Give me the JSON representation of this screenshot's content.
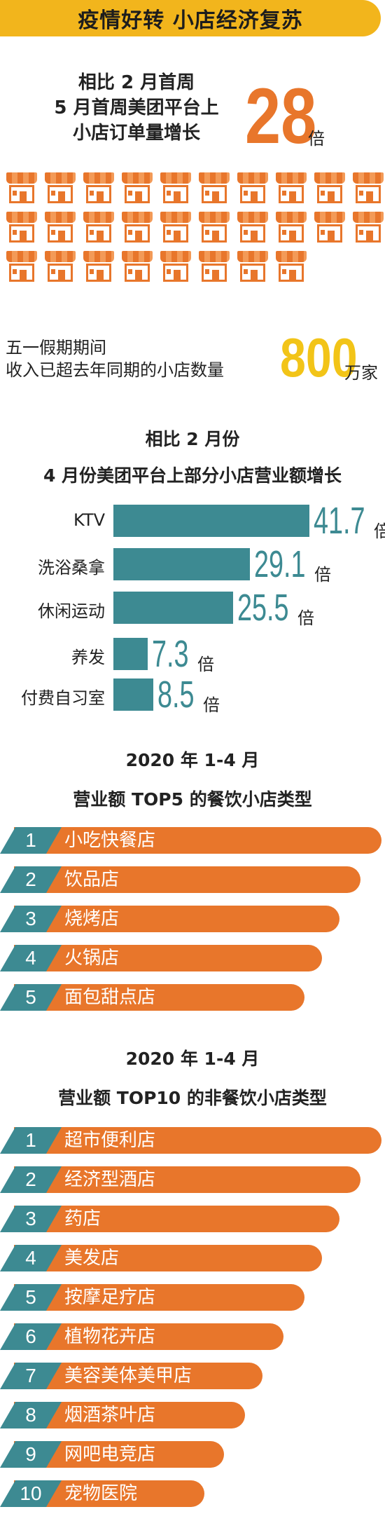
{
  "banner": "疫情好转 小店经济复苏",
  "orders": {
    "line1": "相比 2 月首周",
    "line2": "5 月首周美团平台上",
    "line3": "小店订单量增长",
    "value": "28",
    "unit": "倍"
  },
  "holiday": {
    "line1": "五一假期期间",
    "line2": "收入已超去年同期的小店数量",
    "value": "800",
    "unit": "万家"
  },
  "chart_data": [
    {
      "type": "bar",
      "title": "相比 2 月份",
      "subtitle": "4 月份美团平台上部分小店营业额增长",
      "categories": [
        "KTV",
        "洗浴桑拿",
        "休闲运动",
        "养发",
        "付费自习室"
      ],
      "values": [
        41.7,
        29.1,
        25.5,
        7.3,
        8.5
      ],
      "value_labels": [
        "41.7",
        "29.1",
        "25.5",
        "7.3",
        "8.5"
      ],
      "unit": "倍",
      "color": "#3d8a92"
    },
    {
      "type": "table",
      "title": "2020 年 1-4 月",
      "subtitle": "营业额 TOP5 的餐饮小店类型",
      "ranks": [
        "1",
        "2",
        "3",
        "4",
        "5"
      ],
      "categories": [
        "小吃快餐店",
        "饮品店",
        "烧烤店",
        "火锅店",
        "面包甜点店"
      ]
    },
    {
      "type": "table",
      "title": "2020 年 1-4 月",
      "subtitle": "营业额 TOP10 的非餐饮小店类型",
      "ranks": [
        "1",
        "2",
        "3",
        "4",
        "5",
        "6",
        "7",
        "8",
        "9",
        "10"
      ],
      "categories": [
        "超市便利店",
        "经济型酒店",
        "药店",
        "美发店",
        "按摩足疗店",
        "植物花卉店",
        "美容美体美甲店",
        "烟酒茶叶店",
        "网吧电竞店",
        "宠物医院"
      ]
    }
  ],
  "colors": {
    "banner": "#f2b51c",
    "orange": "#e8762b",
    "teal": "#3d8a92",
    "gold": "#f2c418"
  },
  "icons": {
    "shop": "storefront-icon"
  }
}
